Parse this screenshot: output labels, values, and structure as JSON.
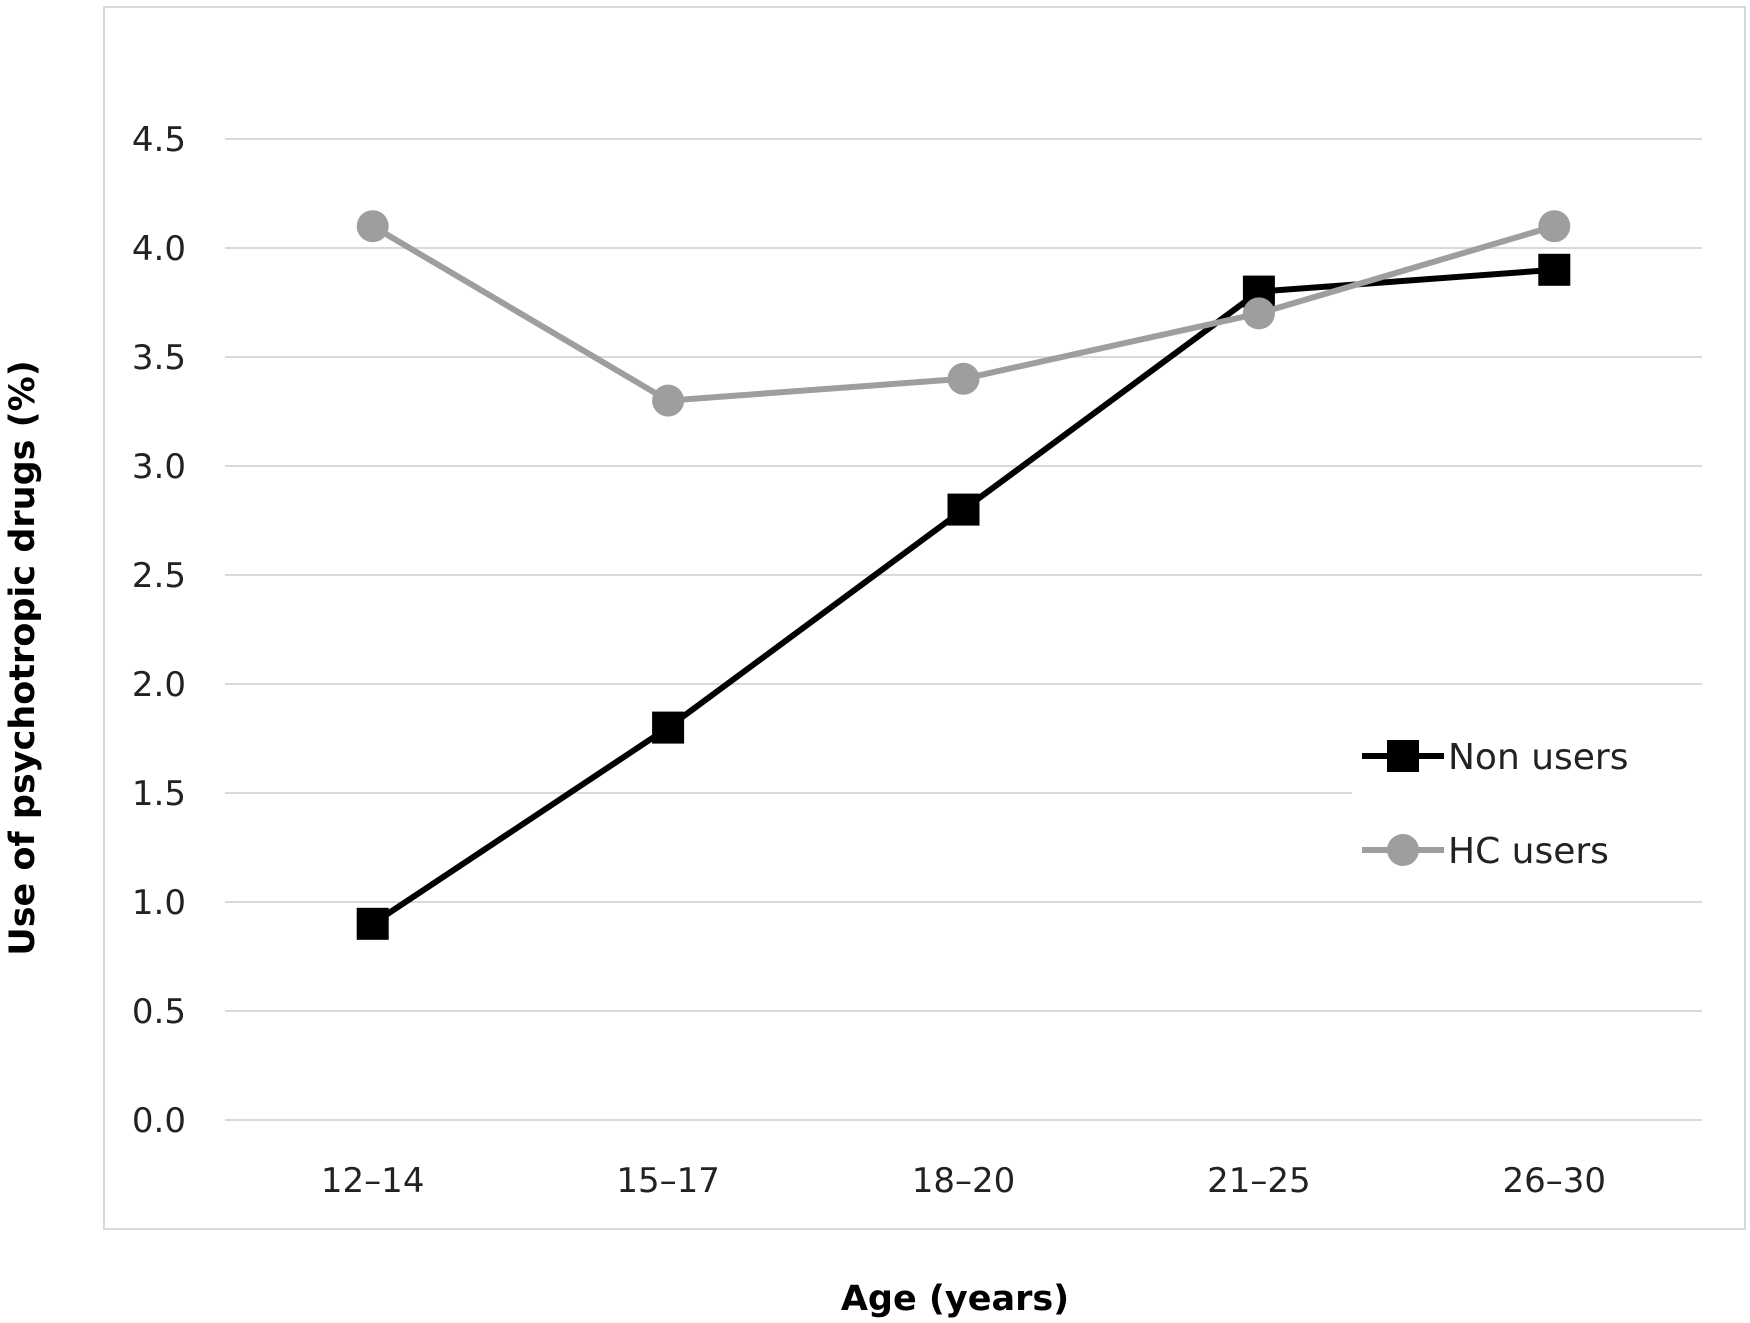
{
  "chart_data": {
    "type": "line",
    "title": "",
    "xlabel": "Age (years)",
    "ylabel": "Use of psychotropic drugs (%)",
    "categories": [
      "12–14",
      "15–17",
      "18–20",
      "21–25",
      "26–30"
    ],
    "y_ticks": [
      "0.0",
      "0.5",
      "1.0",
      "1.5",
      "2.0",
      "2.5",
      "3.0",
      "3.5",
      "4.0",
      "4.5"
    ],
    "ylim": [
      0,
      4.5
    ],
    "grid": true,
    "legend_position": "right",
    "series": [
      {
        "name": "Non users",
        "values": [
          0.9,
          1.8,
          2.8,
          3.8,
          3.9
        ],
        "color": "#000000",
        "marker": "square"
      },
      {
        "name": "HC users",
        "values": [
          4.1,
          3.3,
          3.4,
          3.7,
          4.1
        ],
        "color": "#9e9e9e",
        "marker": "circle"
      }
    ]
  }
}
